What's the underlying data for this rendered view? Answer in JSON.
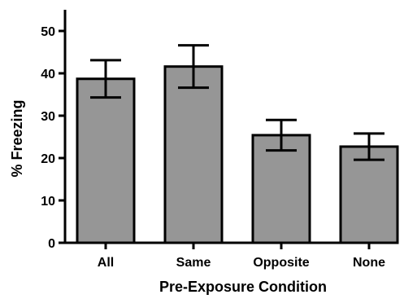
{
  "chart_data": {
    "type": "bar",
    "categories": [
      "All",
      "Same",
      "Opposite",
      "None"
    ],
    "values": [
      38.7,
      41.6,
      25.4,
      22.7
    ],
    "error": [
      4.4,
      5.0,
      3.6,
      3.1
    ],
    "xlabel": "Pre-Exposure Condition",
    "ylabel": "% Freezing",
    "ylim": [
      0,
      50
    ],
    "yticks": [
      0,
      10,
      20,
      30,
      40,
      50
    ],
    "grid": false,
    "colors": {
      "bar_fill": "#969696",
      "bar_stroke": "#000000",
      "axis": "#000000"
    }
  }
}
